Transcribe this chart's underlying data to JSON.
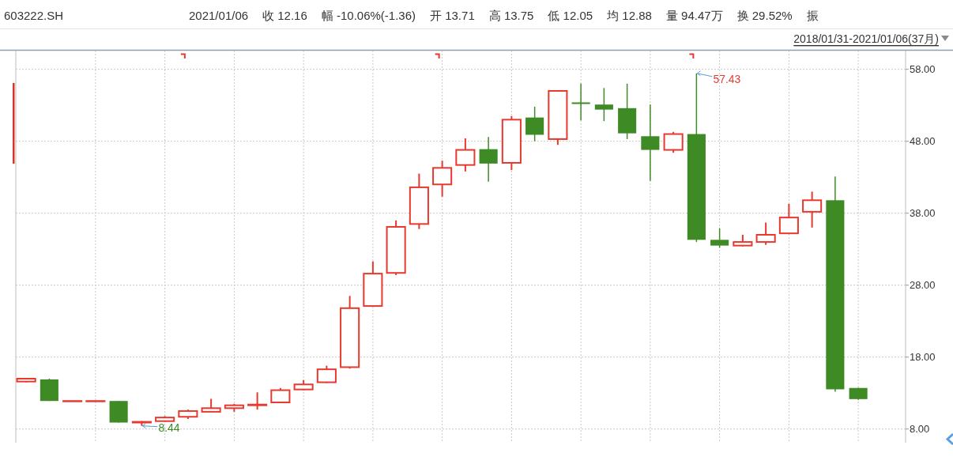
{
  "chart_data": {
    "type": "candlestick",
    "title": "603222.SH",
    "subtitle": "2018/01/31-2021/01/06(37月)",
    "categories": [
      null,
      null,
      null,
      null,
      null,
      null,
      null,
      null,
      null,
      null,
      null,
      null,
      null,
      null,
      null,
      null,
      null,
      null,
      null,
      null,
      null,
      null,
      null,
      null,
      null,
      null,
      null,
      null,
      null,
      null,
      null,
      null,
      null,
      null,
      null,
      null,
      null
    ],
    "ohlc": [
      [
        14.6,
        15.1,
        14.5,
        15.0
      ],
      [
        14.9,
        15.0,
        11.9,
        11.9
      ],
      [
        11.9,
        11.9,
        11.9,
        11.9
      ],
      [
        11.9,
        11.9,
        11.9,
        11.9
      ],
      [
        11.9,
        11.9,
        8.9,
        8.9
      ],
      [
        8.9,
        9.1,
        8.44,
        9.0
      ],
      [
        9.1,
        9.8,
        9.0,
        9.6
      ],
      [
        9.7,
        10.7,
        9.4,
        10.5
      ],
      [
        10.4,
        12.2,
        10.4,
        10.9
      ],
      [
        10.9,
        11.5,
        10.4,
        11.3
      ],
      [
        11.3,
        13.1,
        10.7,
        11.4
      ],
      [
        11.7,
        13.7,
        11.6,
        13.4
      ],
      [
        13.5,
        14.8,
        13.4,
        14.2
      ],
      [
        14.5,
        16.8,
        14.4,
        16.3
      ],
      [
        16.6,
        26.5,
        16.4,
        24.8
      ],
      [
        25.1,
        31.3,
        25.0,
        29.6
      ],
      [
        29.7,
        37.0,
        29.4,
        36.1
      ],
      [
        36.5,
        43.5,
        35.8,
        41.6
      ],
      [
        42.0,
        45.3,
        40.3,
        44.3
      ],
      [
        44.7,
        48.4,
        43.8,
        46.8
      ],
      [
        46.9,
        48.6,
        42.4,
        44.9
      ],
      [
        45.0,
        51.5,
        44.0,
        51.0
      ],
      [
        51.3,
        52.8,
        48.0,
        48.9
      ],
      [
        48.3,
        55.0,
        47.5,
        55.0
      ],
      [
        53.4,
        56.0,
        50.9,
        53.3
      ],
      [
        53.1,
        55.4,
        50.8,
        52.4
      ],
      [
        52.6,
        56.0,
        48.3,
        49.1
      ],
      [
        48.7,
        53.1,
        42.5,
        46.8
      ],
      [
        46.8,
        49.3,
        46.4,
        49.0
      ],
      [
        49.0,
        57.43,
        34.0,
        34.3
      ],
      [
        34.3,
        35.9,
        33.2,
        33.5
      ],
      [
        33.5,
        35.0,
        33.4,
        34.0
      ],
      [
        34.0,
        36.7,
        33.6,
        35.0
      ],
      [
        35.2,
        39.3,
        35.1,
        37.4
      ],
      [
        38.2,
        41.0,
        36.0,
        39.8
      ],
      [
        39.8,
        43.1,
        13.2,
        13.52
      ],
      [
        13.71,
        13.75,
        12.05,
        12.16
      ]
    ],
    "colors": [
      "#e8392f",
      "#3e8b26",
      "#e8392f",
      "#e8392f",
      "#3e8b26",
      "#e8392f",
      "#e8392f",
      "#e8392f",
      "#e8392f",
      "#e8392f",
      "#e8392f",
      "#e8392f",
      "#e8392f",
      "#e8392f",
      "#e8392f",
      "#e8392f",
      "#e8392f",
      "#e8392f",
      "#e8392f",
      "#e8392f",
      "#3e8b26",
      "#e8392f",
      "#3e8b26",
      "#e8392f",
      "#3e8b26",
      "#3e8b26",
      "#3e8b26",
      "#3e8b26",
      "#e8392f",
      "#3e8b26",
      "#3e8b26",
      "#e8392f",
      "#e8392f",
      "#e8392f",
      "#e8392f",
      "#3e8b26",
      "#3e8b26"
    ],
    "ylim": [
      6.1,
      60.6
    ],
    "yticks": [
      {
        "value": 8,
        "label": "8.00"
      },
      {
        "value": 18,
        "label": "18.00"
      },
      {
        "value": 28,
        "label": "28.00"
      },
      {
        "value": 38,
        "label": "38.00"
      },
      {
        "value": 48,
        "label": "48.00"
      },
      {
        "value": 58,
        "label": "58.00"
      }
    ],
    "grid": true,
    "tick_labels": "y",
    "annotations": [
      "2021/01/06",
      "收 12.16",
      "幅 -10.06%(-1.36)",
      "开 13.71",
      "高 13.75",
      "低 12.05",
      "均 12.88",
      "量 94.47万",
      "换 29.52%",
      "振",
      "8.44",
      "57.43"
    ]
  }
}
